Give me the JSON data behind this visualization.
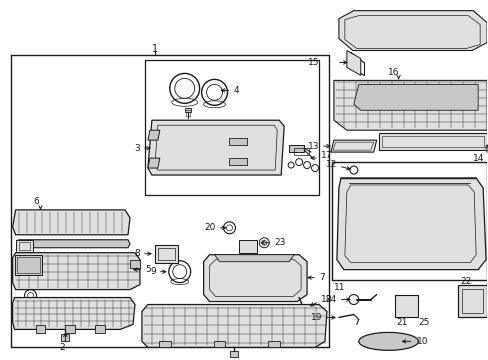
{
  "bg_color": "#ffffff",
  "line_color": "#1a1a1a",
  "gray": "#c8c8c8",
  "light_gray": "#e0e0e0",
  "mid_gray": "#b0b0b0",
  "figsize": [
    4.89,
    3.6
  ],
  "dpi": 100
}
